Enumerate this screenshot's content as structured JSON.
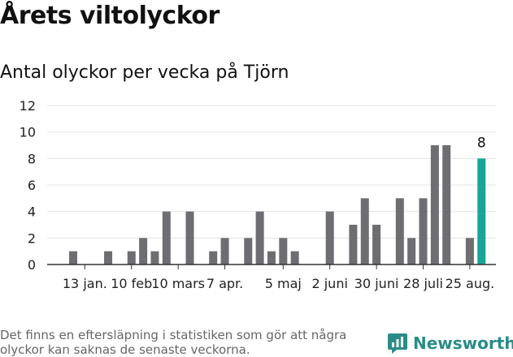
{
  "header": {
    "title": "Årets viltolyckor",
    "subtitle": "Antal olyckor per vecka på Tjörn"
  },
  "footer": {
    "note": "Det finns en eftersläpning i statistiken som gör att några olyckor kan saknas de senaste veckorna.",
    "brand": "Newsworthy"
  },
  "colors": {
    "bar": "#6d6d72",
    "highlight": "#19a59a",
    "grid": "#e3e3e3",
    "axis": "#333333",
    "brand": "#2a8c86"
  },
  "chart_data": {
    "type": "bar",
    "title": "Antal olyckor per vecka på Tjörn",
    "xlabel": "",
    "ylabel": "",
    "ylim": [
      0,
      12
    ],
    "yticks": [
      0,
      2,
      4,
      6,
      8,
      10,
      12
    ],
    "grid": true,
    "weeks": [
      1,
      2,
      3,
      4,
      5,
      6,
      7,
      8,
      9,
      10,
      11,
      12,
      13,
      14,
      15,
      16,
      17,
      18,
      19,
      20,
      21,
      22,
      23,
      24,
      25,
      26,
      27,
      28,
      29,
      30,
      31,
      32,
      33,
      34,
      35
    ],
    "values": [
      1,
      0,
      0,
      1,
      0,
      1,
      2,
      1,
      4,
      0,
      4,
      0,
      1,
      2,
      0,
      2,
      4,
      1,
      2,
      1,
      0,
      0,
      4,
      0,
      3,
      5,
      3,
      0,
      5,
      2,
      5,
      9,
      9,
      0,
      2
    ],
    "highlight": {
      "week": 36,
      "value": 8,
      "label": "8"
    },
    "xticks": [
      {
        "week": 2,
        "label": "13 jan."
      },
      {
        "week": 6,
        "label": "10 feb"
      },
      {
        "week": 10,
        "label": "10 mars"
      },
      {
        "week": 14,
        "label": "7 apr."
      },
      {
        "week": 19,
        "label": "5 maj"
      },
      {
        "week": 23,
        "label": "2 juni"
      },
      {
        "week": 27,
        "label": "30 juni"
      },
      {
        "week": 31,
        "label": "28 juli"
      },
      {
        "week": 35,
        "label": "25 aug."
      }
    ]
  }
}
